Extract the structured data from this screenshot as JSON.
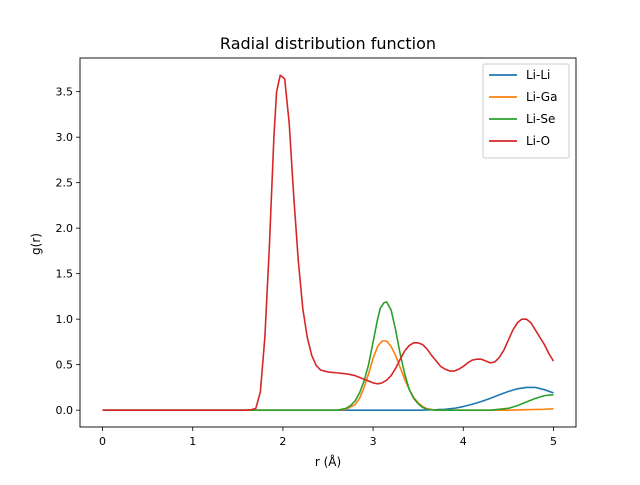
{
  "chart_data": {
    "type": "line",
    "title": "Radial distribution function",
    "xlabel": "r (Å)",
    "ylabel": "g(r)",
    "xlim": [
      -0.25,
      5.25
    ],
    "ylim": [
      -0.185,
      3.87
    ],
    "x_ticks": [
      0,
      1,
      2,
      3,
      4,
      5
    ],
    "x_tick_labels": [
      "0",
      "1",
      "2",
      "3",
      "4",
      "5"
    ],
    "y_ticks": [
      0.0,
      0.5,
      1.0,
      1.5,
      2.0,
      2.5,
      3.0,
      3.5
    ],
    "y_tick_labels": [
      "0.0",
      "0.5",
      "1.0",
      "1.5",
      "2.0",
      "2.5",
      "3.0",
      "3.5"
    ],
    "grid": false,
    "legend_position": "top-right",
    "series": [
      {
        "name": "Li-Li",
        "color": "#1f77b4",
        "points": [
          [
            0,
            0
          ],
          [
            1,
            0
          ],
          [
            2,
            0
          ],
          [
            3,
            0
          ],
          [
            3.5,
            0.0
          ],
          [
            3.7,
            0.005
          ],
          [
            3.8,
            0.01
          ],
          [
            3.9,
            0.02
          ],
          [
            4.0,
            0.04
          ],
          [
            4.1,
            0.065
          ],
          [
            4.2,
            0.095
          ],
          [
            4.3,
            0.13
          ],
          [
            4.4,
            0.17
          ],
          [
            4.5,
            0.205
          ],
          [
            4.6,
            0.235
          ],
          [
            4.7,
            0.25
          ],
          [
            4.8,
            0.25
          ],
          [
            4.9,
            0.225
          ],
          [
            5.0,
            0.19
          ]
        ]
      },
      {
        "name": "Li-Ga",
        "color": "#ff7f0e",
        "points": [
          [
            0,
            0
          ],
          [
            1,
            0
          ],
          [
            2,
            0
          ],
          [
            2.6,
            0.0
          ],
          [
            2.7,
            0.01
          ],
          [
            2.8,
            0.06
          ],
          [
            2.85,
            0.13
          ],
          [
            2.9,
            0.25
          ],
          [
            2.95,
            0.4
          ],
          [
            3.0,
            0.57
          ],
          [
            3.05,
            0.7
          ],
          [
            3.1,
            0.76
          ],
          [
            3.15,
            0.76
          ],
          [
            3.2,
            0.7
          ],
          [
            3.25,
            0.6
          ],
          [
            3.3,
            0.47
          ],
          [
            3.35,
            0.34
          ],
          [
            3.4,
            0.23
          ],
          [
            3.45,
            0.14
          ],
          [
            3.5,
            0.08
          ],
          [
            3.55,
            0.04
          ],
          [
            3.6,
            0.015
          ],
          [
            3.7,
            0.0
          ],
          [
            4.5,
            0.0
          ],
          [
            4.7,
            0.005
          ],
          [
            4.9,
            0.01
          ],
          [
            5.0,
            0.015
          ]
        ]
      },
      {
        "name": "Li-Se",
        "color": "#2ca02c",
        "points": [
          [
            0,
            0
          ],
          [
            1,
            0
          ],
          [
            2,
            0
          ],
          [
            2.6,
            0.0
          ],
          [
            2.7,
            0.02
          ],
          [
            2.75,
            0.05
          ],
          [
            2.8,
            0.1
          ],
          [
            2.85,
            0.19
          ],
          [
            2.9,
            0.32
          ],
          [
            2.95,
            0.5
          ],
          [
            3.0,
            0.75
          ],
          [
            3.05,
            1.0
          ],
          [
            3.08,
            1.12
          ],
          [
            3.12,
            1.18
          ],
          [
            3.15,
            1.19
          ],
          [
            3.2,
            1.1
          ],
          [
            3.25,
            0.88
          ],
          [
            3.3,
            0.62
          ],
          [
            3.35,
            0.4
          ],
          [
            3.4,
            0.23
          ],
          [
            3.45,
            0.13
          ],
          [
            3.5,
            0.07
          ],
          [
            3.55,
            0.03
          ],
          [
            3.6,
            0.01
          ],
          [
            3.7,
            0.0
          ],
          [
            4.3,
            0.0
          ],
          [
            4.5,
            0.02
          ],
          [
            4.6,
            0.05
          ],
          [
            4.7,
            0.09
          ],
          [
            4.8,
            0.13
          ],
          [
            4.9,
            0.16
          ],
          [
            5.0,
            0.17
          ]
        ]
      },
      {
        "name": "Li-O",
        "color": "#d62728",
        "points": [
          [
            0,
            0
          ],
          [
            1.0,
            0.0
          ],
          [
            1.6,
            0.0
          ],
          [
            1.65,
            0.005
          ],
          [
            1.7,
            0.02
          ],
          [
            1.75,
            0.2
          ],
          [
            1.8,
            0.8
          ],
          [
            1.85,
            1.8
          ],
          [
            1.9,
            3.0
          ],
          [
            1.93,
            3.5
          ],
          [
            1.97,
            3.68
          ],
          [
            2.02,
            3.64
          ],
          [
            2.07,
            3.15
          ],
          [
            2.12,
            2.35
          ],
          [
            2.17,
            1.65
          ],
          [
            2.22,
            1.12
          ],
          [
            2.27,
            0.8
          ],
          [
            2.32,
            0.6
          ],
          [
            2.37,
            0.49
          ],
          [
            2.42,
            0.44
          ],
          [
            2.5,
            0.42
          ],
          [
            2.6,
            0.41
          ],
          [
            2.7,
            0.4
          ],
          [
            2.8,
            0.38
          ],
          [
            2.9,
            0.34
          ],
          [
            2.95,
            0.32
          ],
          [
            3.0,
            0.3
          ],
          [
            3.05,
            0.29
          ],
          [
            3.1,
            0.3
          ],
          [
            3.15,
            0.33
          ],
          [
            3.2,
            0.38
          ],
          [
            3.25,
            0.46
          ],
          [
            3.3,
            0.56
          ],
          [
            3.35,
            0.65
          ],
          [
            3.4,
            0.71
          ],
          [
            3.45,
            0.74
          ],
          [
            3.5,
            0.74
          ],
          [
            3.55,
            0.72
          ],
          [
            3.6,
            0.67
          ],
          [
            3.65,
            0.6
          ],
          [
            3.7,
            0.54
          ],
          [
            3.75,
            0.48
          ],
          [
            3.8,
            0.45
          ],
          [
            3.85,
            0.43
          ],
          [
            3.9,
            0.43
          ],
          [
            3.95,
            0.45
          ],
          [
            4.0,
            0.48
          ],
          [
            4.05,
            0.52
          ],
          [
            4.1,
            0.55
          ],
          [
            4.15,
            0.56
          ],
          [
            4.2,
            0.56
          ],
          [
            4.25,
            0.54
          ],
          [
            4.3,
            0.52
          ],
          [
            4.35,
            0.53
          ],
          [
            4.4,
            0.58
          ],
          [
            4.45,
            0.66
          ],
          [
            4.5,
            0.77
          ],
          [
            4.55,
            0.88
          ],
          [
            4.6,
            0.96
          ],
          [
            4.65,
            1.0
          ],
          [
            4.7,
            1.0
          ],
          [
            4.75,
            0.96
          ],
          [
            4.8,
            0.88
          ],
          [
            4.85,
            0.8
          ],
          [
            4.9,
            0.72
          ],
          [
            4.95,
            0.62
          ],
          [
            5.0,
            0.54
          ]
        ]
      }
    ]
  }
}
